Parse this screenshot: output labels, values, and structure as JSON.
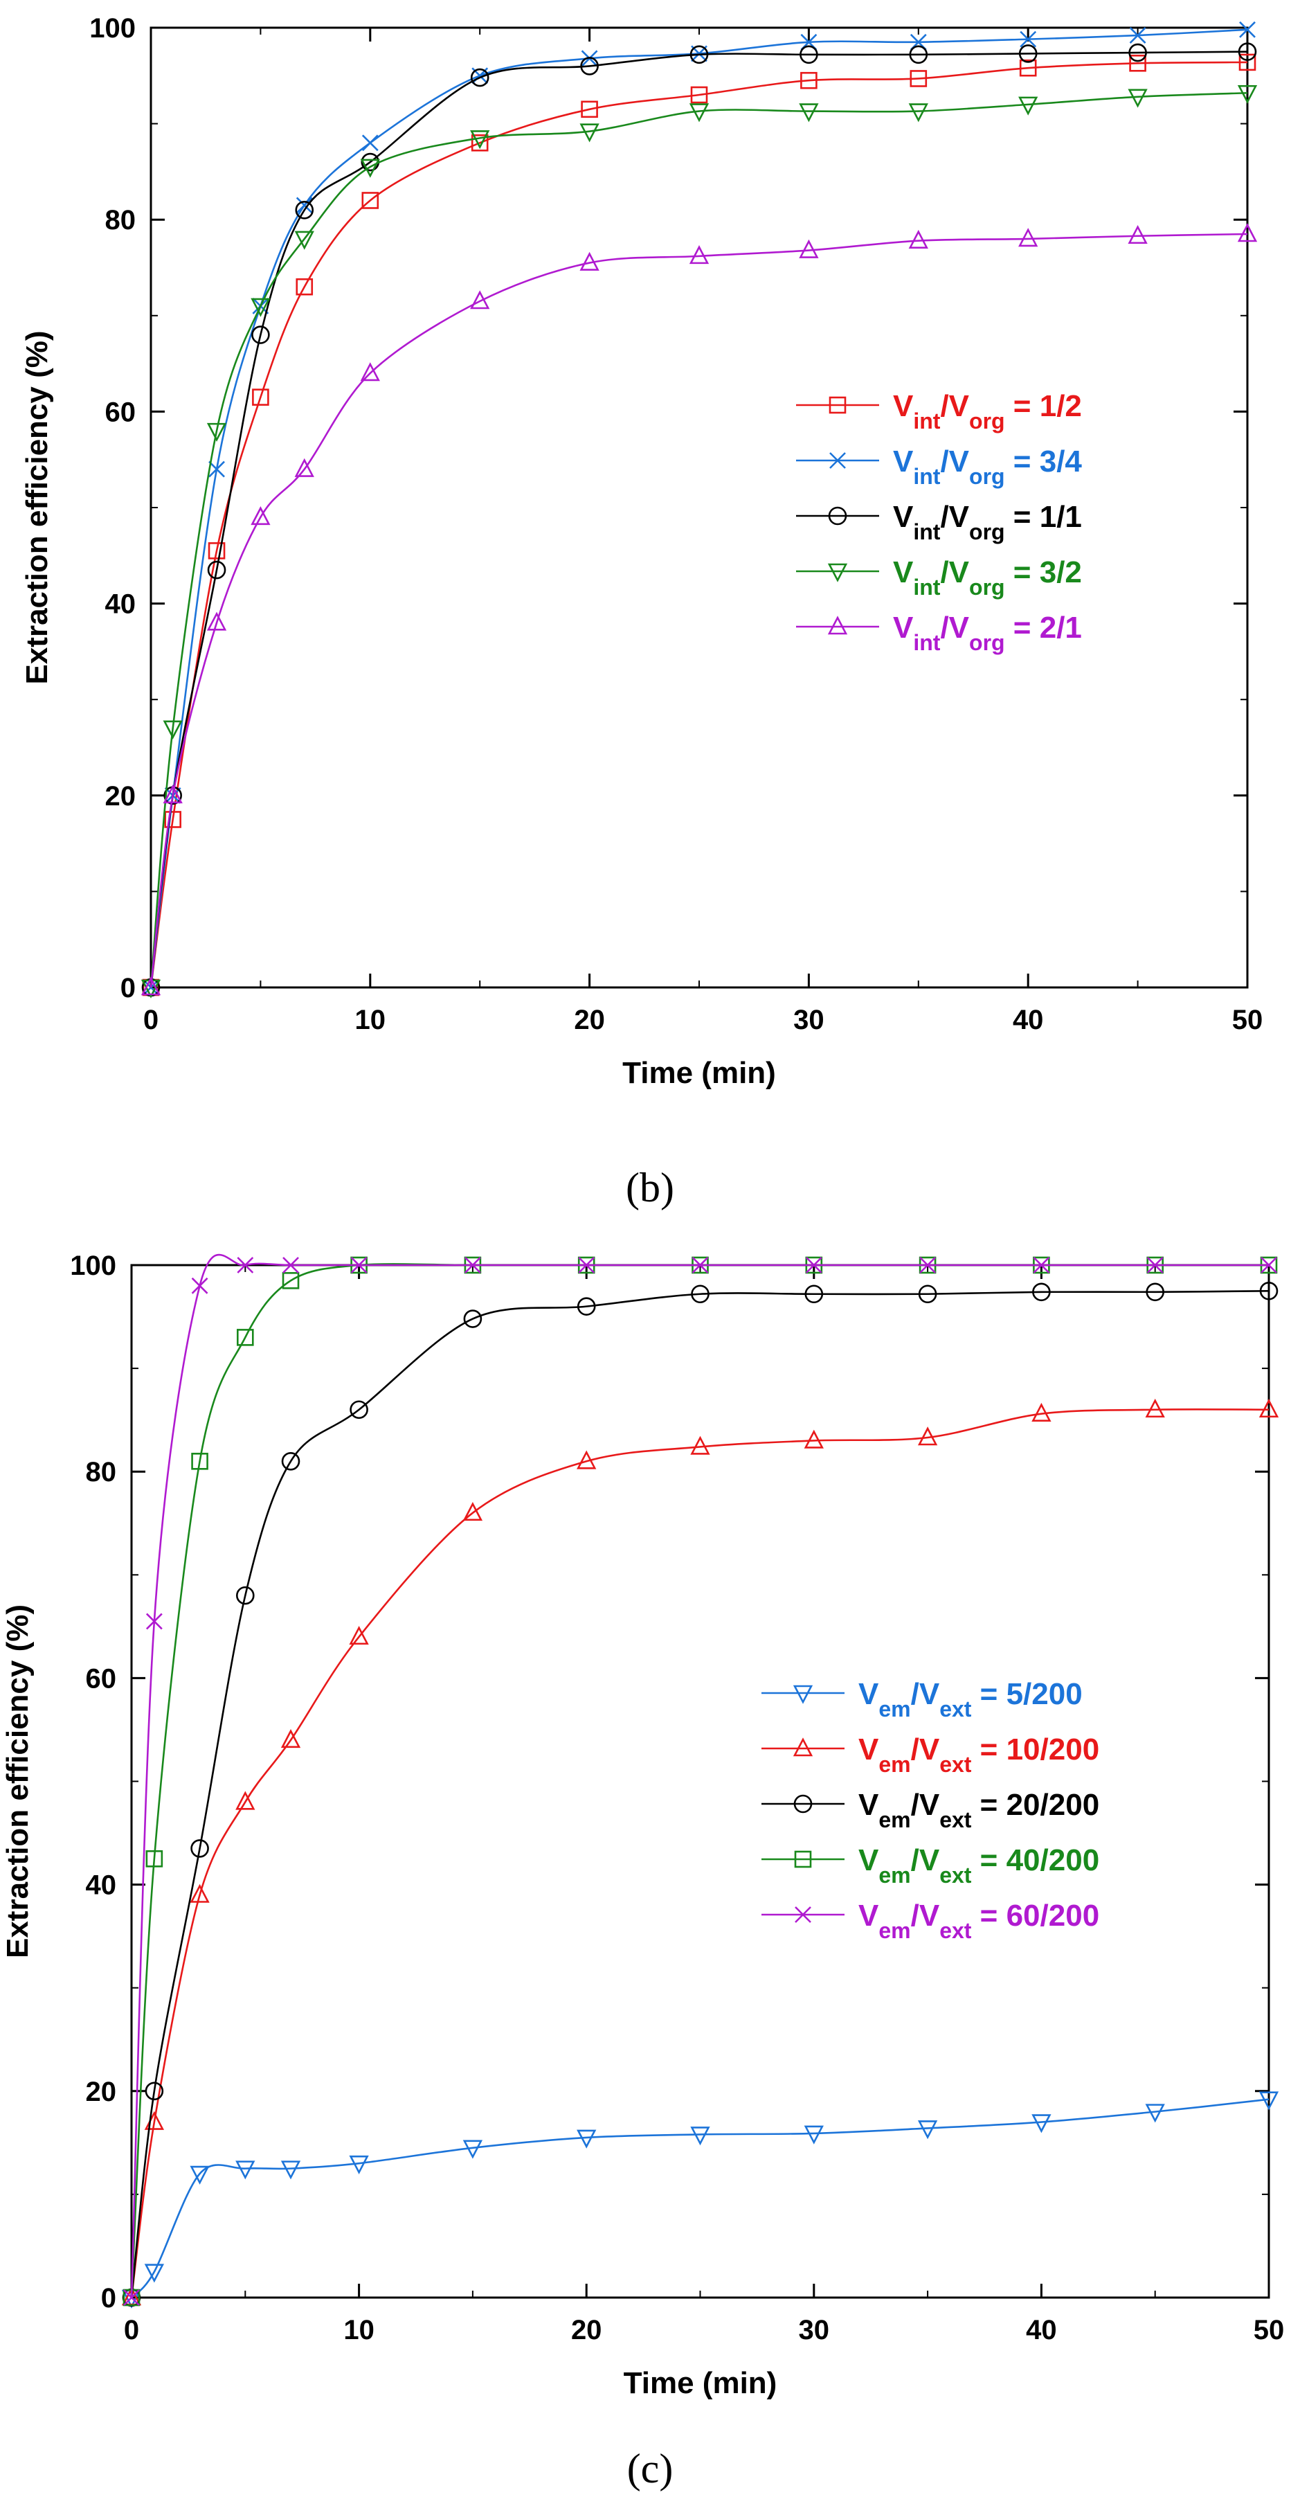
{
  "chart_data": [
    {
      "type": "line",
      "panel_label": "(b)",
      "title": "",
      "xlabel": "Time (min)",
      "ylabel": "Extraction efficiency (%)",
      "xlim": [
        0,
        50
      ],
      "ylim": [
        0,
        100
      ],
      "xticks": [
        0,
        10,
        20,
        30,
        40,
        50
      ],
      "yticks": [
        0,
        20,
        40,
        60,
        80,
        100
      ],
      "legend_position": "center-right",
      "x": [
        0,
        1,
        3,
        5,
        7,
        10,
        15,
        20,
        25,
        30,
        35,
        40,
        45,
        50
      ],
      "series": [
        {
          "name": "Vint/Vorg = 1/2",
          "label_prefix": "V",
          "sub1": "int",
          "mid": "/V",
          "sub2": "org",
          "suffix": " = 1/2",
          "color": "#e8191a",
          "marker": "square",
          "values": [
            0,
            17.5,
            45.5,
            61.5,
            73,
            82,
            88,
            91.5,
            93,
            94.5,
            94.7,
            95.8,
            96.3,
            96.4
          ]
        },
        {
          "name": "Vint/Vorg = 3/4",
          "label_prefix": "V",
          "sub1": "int",
          "mid": "/V",
          "sub2": "org",
          "suffix": " = 3/4",
          "color": "#1c74d9",
          "marker": "x",
          "values": [
            0,
            20,
            54,
            71,
            81.5,
            88,
            95,
            96.8,
            97.3,
            98.5,
            98.5,
            98.8,
            99.2,
            99.8
          ]
        },
        {
          "name": "Vint/Vorg = 1/1",
          "label_prefix": "V",
          "sub1": "int",
          "mid": "/V",
          "sub2": "org",
          "suffix": " = 1/1",
          "color": "#000000",
          "marker": "circle",
          "values": [
            0,
            20,
            43.5,
            68,
            81,
            86,
            94.8,
            96,
            97.2,
            97.2,
            97.2,
            97.3,
            97.4,
            97.5
          ]
        },
        {
          "name": "Vint/Vorg = 3/2",
          "label_prefix": "V",
          "sub1": "int",
          "mid": "/V",
          "sub2": "org",
          "suffix": " = 3/2",
          "color": "#19891c",
          "marker": "triangle-down",
          "values": [
            0,
            27,
            58,
            71,
            78,
            85.5,
            88.5,
            89.2,
            91.3,
            91.3,
            91.3,
            92,
            92.8,
            93.2
          ]
        },
        {
          "name": "Vint/Vorg = 2/1",
          "label_prefix": "V",
          "sub1": "int",
          "mid": "/V",
          "sub2": "org",
          "suffix": " = 2/1",
          "color": "#b01ad0",
          "marker": "triangle-up",
          "values": [
            0,
            20,
            38,
            49,
            54,
            64,
            71.5,
            75.5,
            76.2,
            76.8,
            77.8,
            78,
            78.3,
            78.5
          ]
        }
      ]
    },
    {
      "type": "line",
      "panel_label": "(c)",
      "title": "",
      "xlabel": "Time (min)",
      "ylabel": "Extraction efficiency (%)",
      "xlim": [
        0,
        50
      ],
      "ylim": [
        0,
        100
      ],
      "xticks": [
        0,
        10,
        20,
        30,
        40,
        50
      ],
      "yticks": [
        0,
        20,
        40,
        60,
        80,
        100
      ],
      "legend_position": "center-right",
      "x": [
        0,
        1,
        3,
        5,
        7,
        10,
        15,
        20,
        25,
        30,
        35,
        40,
        45,
        50
      ],
      "series": [
        {
          "name": "Vem/Vext = 5/200",
          "label_prefix": "V",
          "sub1": "em",
          "mid": "/V",
          "sub2": "ext",
          "suffix": " = 5/200",
          "color": "#1c74d9",
          "marker": "triangle-down",
          "values": [
            0,
            2.5,
            12,
            12.5,
            12.5,
            13,
            14.5,
            15.5,
            15.8,
            15.9,
            16.4,
            17,
            18,
            19.2
          ]
        },
        {
          "name": "Vem/Vext = 10/200",
          "label_prefix": "V",
          "sub1": "em",
          "mid": "/V",
          "sub2": "ext",
          "suffix": " = 10/200",
          "color": "#e8191a",
          "marker": "triangle-up",
          "values": [
            0,
            17,
            39,
            48,
            54,
            64,
            76,
            81,
            82.4,
            83,
            83.3,
            85.6,
            86,
            86
          ]
        },
        {
          "name": "Vem/Vext = 20/200",
          "label_prefix": "V",
          "sub1": "em",
          "mid": "/V",
          "sub2": "ext",
          "suffix": " = 20/200",
          "color": "#000000",
          "marker": "circle",
          "values": [
            0,
            20,
            43.5,
            68,
            81,
            86,
            94.8,
            96,
            97.2,
            97.2,
            97.2,
            97.4,
            97.4,
            97.5
          ]
        },
        {
          "name": "Vem/Vext = 40/200",
          "label_prefix": "V",
          "sub1": "em",
          "mid": "/V",
          "sub2": "ext",
          "suffix": " = 40/200",
          "color": "#19891c",
          "marker": "square",
          "values": [
            0,
            42.5,
            81,
            93,
            98.5,
            100,
            100,
            100,
            100,
            100,
            100,
            100,
            100,
            100
          ]
        },
        {
          "name": "Vem/Vext = 60/200",
          "label_prefix": "V",
          "sub1": "em",
          "mid": "/V",
          "sub2": "ext",
          "suffix": " = 60/200",
          "color": "#b01ad0",
          "marker": "x",
          "values": [
            0,
            65.5,
            98,
            100,
            100,
            100,
            100,
            100,
            100,
            100,
            100,
            100,
            100,
            100
          ]
        }
      ]
    }
  ]
}
